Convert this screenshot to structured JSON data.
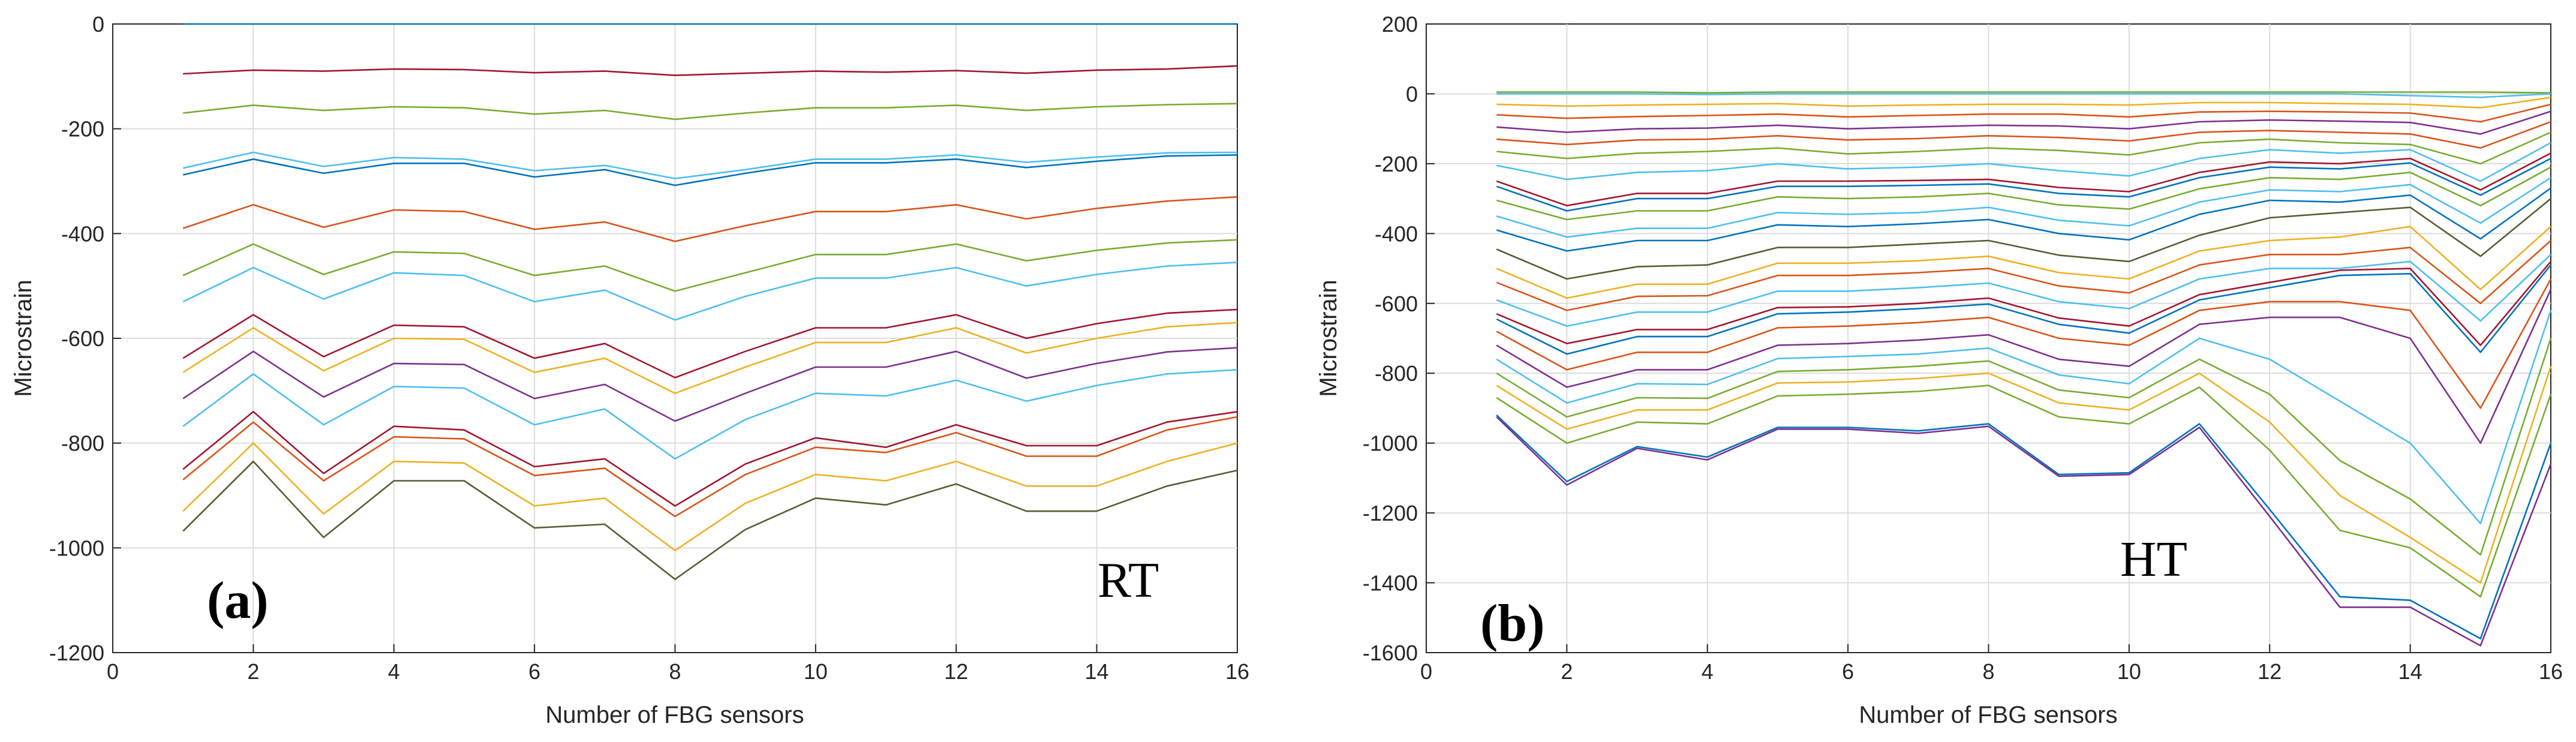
{
  "chart_data": [
    {
      "type": "line",
      "panel_label": "(a)",
      "condition_label": "RT",
      "title": "",
      "xlabel": "Number of FBG sensors",
      "ylabel": "Microstrain",
      "xlim": [
        0,
        16
      ],
      "ylim": [
        -1200,
        0
      ],
      "xticks": [
        0,
        2,
        4,
        6,
        8,
        10,
        12,
        14,
        16
      ],
      "yticks": [
        0,
        -200,
        -400,
        -600,
        -800,
        -1000,
        -1200
      ],
      "grid": true,
      "x": [
        1,
        2,
        3,
        4,
        5,
        6,
        7,
        8,
        9,
        10,
        11,
        12,
        13,
        14,
        15,
        16
      ],
      "series": [
        {
          "color": "#0072bd",
          "values": [
            0,
            0,
            0,
            0,
            0,
            0,
            0,
            0,
            0,
            0,
            0,
            0,
            0,
            0,
            0,
            0
          ]
        },
        {
          "color": "#a2142f",
          "values": [
            -95,
            -88,
            -90,
            -86,
            -87,
            -93,
            -90,
            -98,
            -94,
            -90,
            -92,
            -89,
            -94,
            -88,
            -86,
            -80
          ]
        },
        {
          "color": "#77ac30",
          "values": [
            -170,
            -155,
            -165,
            -158,
            -160,
            -172,
            -165,
            -182,
            -170,
            -160,
            -160,
            -155,
            -165,
            -158,
            -154,
            -152
          ]
        },
        {
          "color": "#4dbeee",
          "values": [
            -275,
            -245,
            -272,
            -255,
            -258,
            -280,
            -270,
            -295,
            -278,
            -258,
            -258,
            -250,
            -264,
            -254,
            -246,
            -245
          ]
        },
        {
          "color": "#0072bd",
          "values": [
            -288,
            -258,
            -285,
            -266,
            -266,
            -292,
            -278,
            -308,
            -285,
            -265,
            -265,
            -258,
            -274,
            -262,
            -252,
            -250
          ]
        },
        {
          "color": "#d95319",
          "values": [
            -390,
            -345,
            -388,
            -355,
            -358,
            -392,
            -378,
            -415,
            -385,
            -358,
            -358,
            -345,
            -372,
            -352,
            -338,
            -330
          ]
        },
        {
          "color": "#77ac30",
          "values": [
            -480,
            -420,
            -478,
            -435,
            -438,
            -480,
            -462,
            -510,
            -475,
            -440,
            -440,
            -420,
            -452,
            -432,
            -418,
            -412
          ]
        },
        {
          "color": "#4dbeee",
          "values": [
            -530,
            -465,
            -525,
            -475,
            -480,
            -530,
            -508,
            -565,
            -520,
            -485,
            -485,
            -465,
            -500,
            -478,
            -462,
            -455
          ]
        },
        {
          "color": "#a2142f",
          "values": [
            -638,
            -555,
            -635,
            -575,
            -578,
            -638,
            -610,
            -675,
            -625,
            -580,
            -580,
            -555,
            -600,
            -572,
            -552,
            -545
          ]
        },
        {
          "color": "#edb120",
          "values": [
            -665,
            -580,
            -662,
            -600,
            -602,
            -665,
            -638,
            -705,
            -655,
            -608,
            -608,
            -580,
            -628,
            -600,
            -578,
            -570
          ]
        },
        {
          "color": "#7e2f8e",
          "values": [
            -715,
            -625,
            -712,
            -648,
            -650,
            -715,
            -688,
            -758,
            -705,
            -655,
            -655,
            -625,
            -676,
            -648,
            -626,
            -618
          ]
        },
        {
          "color": "#4dbeee",
          "values": [
            -768,
            -668,
            -765,
            -692,
            -695,
            -765,
            -735,
            -830,
            -755,
            -705,
            -710,
            -680,
            -720,
            -690,
            -668,
            -660
          ]
        },
        {
          "color": "#a2142f",
          "values": [
            -850,
            -740,
            -858,
            -768,
            -775,
            -845,
            -830,
            -920,
            -840,
            -790,
            -808,
            -765,
            -805,
            -805,
            -760,
            -740
          ]
        },
        {
          "color": "#d95319",
          "values": [
            -870,
            -760,
            -872,
            -788,
            -792,
            -862,
            -848,
            -940,
            -860,
            -808,
            -818,
            -780,
            -825,
            -825,
            -775,
            -750
          ]
        },
        {
          "color": "#edb120",
          "values": [
            -930,
            -800,
            -935,
            -835,
            -838,
            -920,
            -905,
            -1005,
            -915,
            -860,
            -872,
            -835,
            -882,
            -882,
            -835,
            -800
          ]
        },
        {
          "color": "#5a5a32",
          "values": [
            -968,
            -835,
            -980,
            -872,
            -872,
            -962,
            -955,
            -1060,
            -965,
            -905,
            -918,
            -878,
            -930,
            -930,
            -882,
            -852
          ]
        }
      ]
    },
    {
      "type": "line",
      "panel_label": "(b)",
      "condition_label": "HT",
      "title": "",
      "xlabel": "Number of FBG sensors",
      "ylabel": "Microstrain",
      "xlim": [
        0,
        16
      ],
      "ylim": [
        -1600,
        200
      ],
      "xticks": [
        0,
        2,
        4,
        6,
        8,
        10,
        12,
        14,
        16
      ],
      "yticks": [
        200,
        0,
        -200,
        -400,
        -600,
        -800,
        -1000,
        -1200,
        -1400,
        -1600
      ],
      "grid": true,
      "x": [
        1,
        2,
        3,
        4,
        5,
        6,
        7,
        8,
        9,
        10,
        11,
        12,
        13,
        14,
        15,
        16
      ],
      "series": [
        {
          "color": "#77ac30",
          "values": [
            5,
            5,
            5,
            3,
            5,
            5,
            5,
            5,
            5,
            5,
            5,
            5,
            5,
            5,
            5,
            3
          ]
        },
        {
          "color": "#4dbeee",
          "values": [
            0,
            0,
            0,
            -2,
            0,
            0,
            0,
            0,
            0,
            0,
            0,
            0,
            0,
            -5,
            -10,
            0
          ]
        },
        {
          "color": "#edb120",
          "values": [
            -30,
            -35,
            -32,
            -30,
            -28,
            -35,
            -32,
            -30,
            -30,
            -32,
            -25,
            -25,
            -28,
            -30,
            -40,
            -10
          ]
        },
        {
          "color": "#d95319",
          "values": [
            -60,
            -70,
            -65,
            -62,
            -58,
            -66,
            -62,
            -58,
            -58,
            -66,
            -52,
            -50,
            -52,
            -55,
            -80,
            -30
          ]
        },
        {
          "color": "#7e2f8e",
          "values": [
            -95,
            -110,
            -100,
            -98,
            -90,
            -100,
            -95,
            -90,
            -92,
            -100,
            -80,
            -75,
            -78,
            -82,
            -115,
            -50
          ]
        },
        {
          "color": "#d95319",
          "values": [
            -130,
            -145,
            -132,
            -130,
            -120,
            -132,
            -128,
            -120,
            -125,
            -135,
            -110,
            -105,
            -110,
            -115,
            -155,
            -80
          ]
        },
        {
          "color": "#77ac30",
          "values": [
            -165,
            -185,
            -170,
            -165,
            -155,
            -172,
            -165,
            -155,
            -162,
            -175,
            -140,
            -130,
            -140,
            -145,
            -200,
            -110
          ]
        },
        {
          "color": "#4dbeee",
          "values": [
            -205,
            -245,
            -225,
            -220,
            -200,
            -215,
            -210,
            -200,
            -220,
            -235,
            -185,
            -160,
            -170,
            -160,
            -250,
            -140
          ]
        },
        {
          "color": "#a2142f",
          "values": [
            -250,
            -320,
            -285,
            -285,
            -250,
            -250,
            -248,
            -245,
            -268,
            -280,
            -225,
            -195,
            -200,
            -185,
            -275,
            -170
          ]
        },
        {
          "color": "#0072bd",
          "values": [
            -265,
            -335,
            -300,
            -300,
            -265,
            -265,
            -262,
            -258,
            -285,
            -295,
            -240,
            -210,
            -215,
            -198,
            -290,
            -185
          ]
        },
        {
          "color": "#77ac30",
          "values": [
            -305,
            -360,
            -335,
            -335,
            -295,
            -300,
            -295,
            -285,
            -318,
            -330,
            -272,
            -240,
            -245,
            -225,
            -320,
            -210
          ]
        },
        {
          "color": "#4dbeee",
          "values": [
            -350,
            -410,
            -385,
            -385,
            -340,
            -345,
            -340,
            -325,
            -362,
            -378,
            -310,
            -275,
            -280,
            -260,
            -370,
            -240
          ]
        },
        {
          "color": "#0072bd",
          "values": [
            -390,
            -450,
            -420,
            -420,
            -375,
            -380,
            -372,
            -360,
            -400,
            -418,
            -345,
            -305,
            -310,
            -290,
            -415,
            -270
          ]
        },
        {
          "color": "#5a5a32",
          "values": [
            -445,
            -530,
            -495,
            -490,
            -440,
            -440,
            -430,
            -420,
            -462,
            -480,
            -405,
            -355,
            -340,
            -325,
            -465,
            -300
          ]
        },
        {
          "color": "#edb120",
          "values": [
            -500,
            -585,
            -545,
            -545,
            -485,
            -485,
            -478,
            -465,
            -512,
            -530,
            -450,
            -420,
            -410,
            -380,
            -560,
            -380
          ]
        },
        {
          "color": "#d95319",
          "values": [
            -540,
            -620,
            -580,
            -578,
            -520,
            -520,
            -512,
            -500,
            -550,
            -570,
            -490,
            -460,
            -460,
            -440,
            -600,
            -420
          ]
        },
        {
          "color": "#4dbeee",
          "values": [
            -590,
            -665,
            -625,
            -625,
            -565,
            -565,
            -555,
            -542,
            -595,
            -615,
            -530,
            -500,
            -500,
            -480,
            -650,
            -460
          ]
        },
        {
          "color": "#a2142f",
          "values": [
            -630,
            -715,
            -675,
            -675,
            -612,
            -610,
            -600,
            -585,
            -642,
            -665,
            -575,
            -540,
            -505,
            -500,
            -720,
            -480
          ]
        },
        {
          "color": "#0072bd",
          "values": [
            -645,
            -745,
            -695,
            -695,
            -630,
            -625,
            -615,
            -602,
            -660,
            -685,
            -590,
            -555,
            -520,
            -515,
            -740,
            -490
          ]
        },
        {
          "color": "#d95319",
          "values": [
            -680,
            -790,
            -740,
            -740,
            -670,
            -665,
            -655,
            -640,
            -700,
            -720,
            -620,
            -595,
            -595,
            -620,
            -900,
            -530
          ]
        },
        {
          "color": "#7e2f8e",
          "values": [
            -720,
            -840,
            -790,
            -790,
            -720,
            -715,
            -705,
            -690,
            -760,
            -780,
            -660,
            -640,
            -640,
            -700,
            -1000,
            -560
          ]
        },
        {
          "color": "#4dbeee",
          "values": [
            -760,
            -885,
            -830,
            -832,
            -758,
            -752,
            -745,
            -728,
            -805,
            -830,
            -700,
            -760,
            -880,
            -1000,
            -1230,
            -620
          ]
        },
        {
          "color": "#77ac30",
          "values": [
            -800,
            -925,
            -870,
            -872,
            -795,
            -790,
            -780,
            -765,
            -848,
            -870,
            -760,
            -860,
            -1050,
            -1160,
            -1320,
            -700
          ]
        },
        {
          "color": "#edb120",
          "values": [
            -835,
            -960,
            -905,
            -905,
            -828,
            -825,
            -815,
            -800,
            -885,
            -905,
            -800,
            -940,
            -1150,
            -1270,
            -1400,
            -780
          ]
        },
        {
          "color": "#77ac30",
          "values": [
            -870,
            -1000,
            -940,
            -945,
            -865,
            -860,
            -852,
            -835,
            -925,
            -945,
            -840,
            -1020,
            -1250,
            -1300,
            -1440,
            -860
          ]
        },
        {
          "color": "#0072bd",
          "values": [
            -920,
            -1110,
            -1010,
            -1040,
            -955,
            -955,
            -965,
            -945,
            -1090,
            -1085,
            -945,
            -1190,
            -1440,
            -1450,
            -1560,
            -1000
          ]
        },
        {
          "color": "#7e2f8e",
          "values": [
            -925,
            -1120,
            -1015,
            -1048,
            -960,
            -960,
            -972,
            -952,
            -1095,
            -1090,
            -955,
            -1210,
            -1470,
            -1470,
            -1580,
            -1060
          ]
        }
      ]
    }
  ]
}
